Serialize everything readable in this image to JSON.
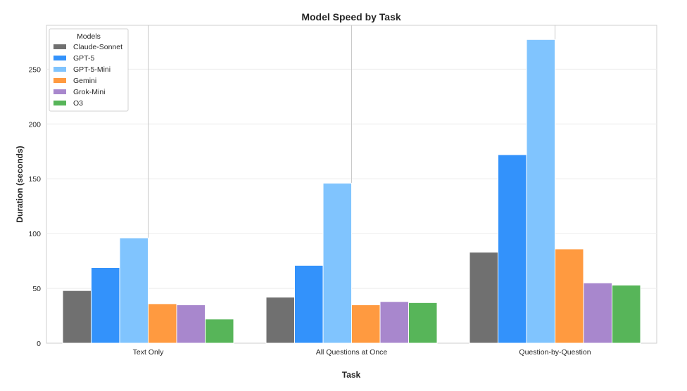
{
  "chart_data": {
    "type": "bar",
    "title": "Model Speed by Task",
    "xlabel": "Task",
    "ylabel": "Duration (seconds)",
    "categories": [
      "Text Only",
      "All Questions at Once",
      "Question-by-Question"
    ],
    "ylim": [
      0,
      290
    ],
    "yticks": [
      0,
      50,
      100,
      150,
      200,
      250
    ],
    "grid": true,
    "legend": {
      "title": "Models",
      "placement": "top-left"
    },
    "series": [
      {
        "name": "Claude-Sonnet",
        "color": "#707070",
        "values": [
          48,
          42,
          83
        ]
      },
      {
        "name": "GPT-5",
        "color": "#3392fb",
        "values": [
          69,
          71,
          172
        ]
      },
      {
        "name": "GPT-5-Mini",
        "color": "#80c4fe",
        "values": [
          96,
          146,
          277
        ]
      },
      {
        "name": "Gemini",
        "color": "#ff9a40",
        "values": [
          36,
          35,
          86
        ]
      },
      {
        "name": "Grok-Mini",
        "color": "#a887cd",
        "values": [
          35,
          38,
          55
        ]
      },
      {
        "name": "O3",
        "color": "#57b559",
        "values": [
          22,
          37,
          53
        ]
      }
    ]
  }
}
